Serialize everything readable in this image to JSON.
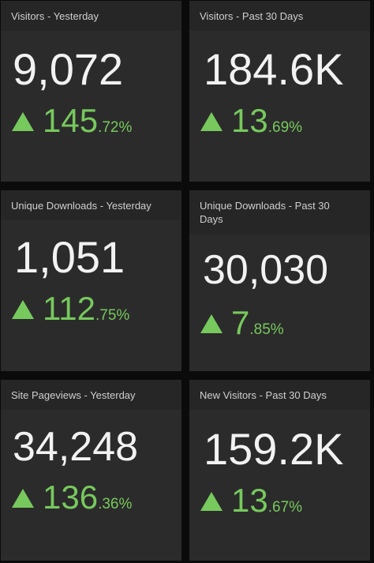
{
  "tiles": [
    {
      "title": "Visitors - Yesterday",
      "value": "9,072",
      "change_int": "145",
      "change_dec": ".72%"
    },
    {
      "title": "Visitors - Past 30 Days",
      "value": "184.6K",
      "change_int": "13",
      "change_dec": ".69%"
    },
    {
      "title": "Unique Downloads - Yesterday",
      "value": "1,051",
      "change_int": "112",
      "change_dec": ".75%"
    },
    {
      "title": "Unique Downloads - Past 30 Days",
      "value": "30,030",
      "change_int": "7",
      "change_dec": ".85%"
    },
    {
      "title": "Site Pageviews - Yesterday",
      "value": "34,248",
      "change_int": "136",
      "change_dec": ".36%"
    },
    {
      "title": "New Visitors - Past 30 Days",
      "value": "159.2K",
      "change_int": "13",
      "change_dec": ".67%"
    }
  ],
  "colors": {
    "tile_background": "#2b2b2b",
    "header_background": "#262626",
    "value_text": "#f2f2f2",
    "positive_change": "#77c95d"
  },
  "icons": {
    "change_indicator": "triangle-up-icon"
  }
}
